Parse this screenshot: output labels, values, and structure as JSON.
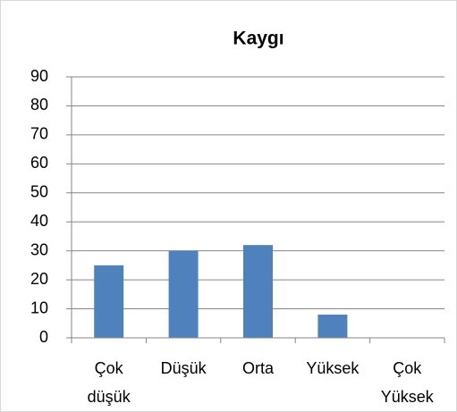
{
  "chart_data": {
    "type": "bar",
    "title": "Kaygı",
    "categories": [
      "Çok düşük",
      "Düşük",
      "Orta",
      "Yüksek",
      "Çok Yüksek"
    ],
    "values": [
      25,
      30,
      32,
      8,
      0
    ],
    "color": "#4f81bd",
    "ylim": [
      0,
      90
    ],
    "yticks": [
      0,
      10,
      20,
      30,
      40,
      50,
      60,
      70,
      80,
      90
    ],
    "grid": true
  }
}
